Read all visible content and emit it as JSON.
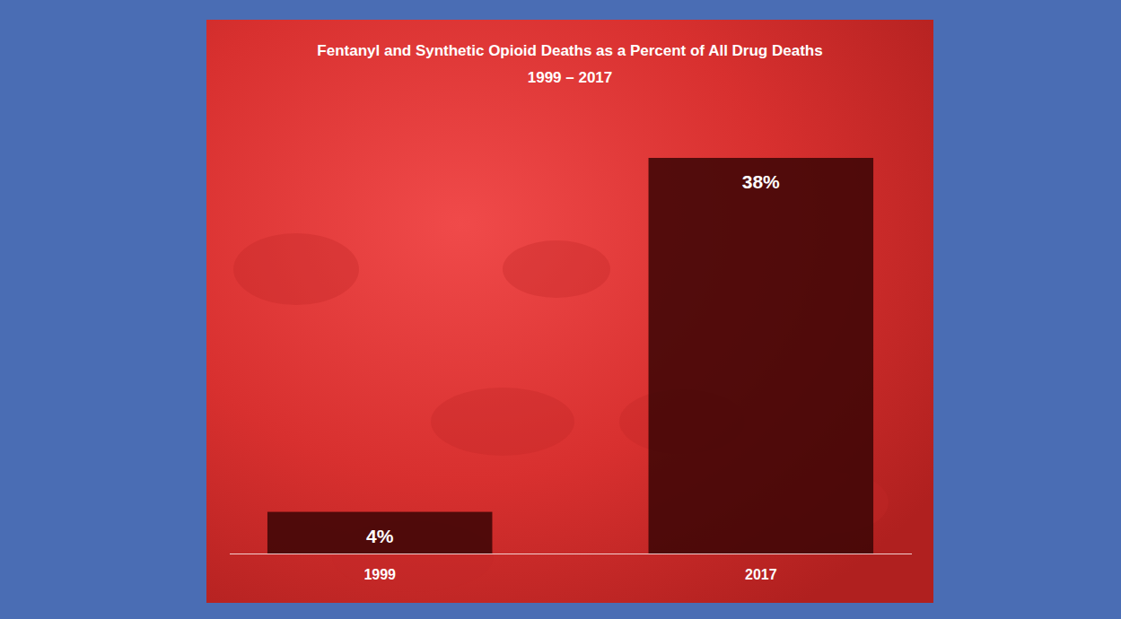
{
  "chart_data": {
    "type": "bar",
    "title": "Fentanyl and Synthetic Opioid Deaths as a Percent of All Drug Deaths",
    "subtitle": "1999 – 2017",
    "categories": [
      "1999",
      "2017"
    ],
    "values": [
      4,
      38
    ],
    "value_labels": [
      "4%",
      "38%"
    ],
    "data_labels": true,
    "color": "#3a0505",
    "ylim": [
      0,
      38
    ],
    "tick_labels": "x",
    "grid": false
  }
}
